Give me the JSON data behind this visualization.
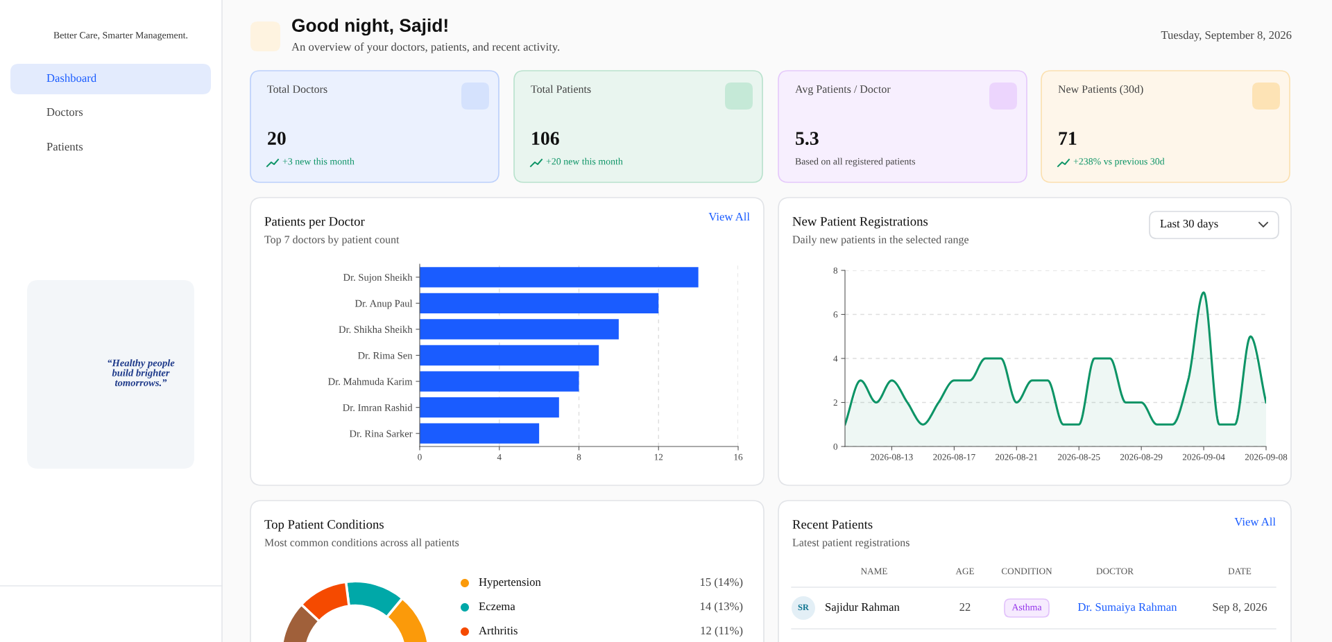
{
  "chart_data": [
    {
      "type": "other",
      "subtitle": "Better Care, Smarter Management.",
      "annotations": [
        "Dashboard",
        "Doctors",
        "Patients",
        "“Healthy people\nbuild brighter\ntomorrows.”"
      ]
    },
    {
      "type": "other",
      "title": "Good night, Sajid!",
      "subtitle": "An overview of your doctors, patients, and recent activity.",
      "annotations": [
        "Tuesday, September 8, 2026"
      ]
    },
    {
      "type": "other",
      "title": "Total Doctors",
      "annotations": [
        "20",
        "+3 new this month"
      ]
    },
    {
      "type": "other",
      "title": "Total Patients",
      "annotations": [
        "106",
        "+20 new this month"
      ]
    },
    {
      "type": "other",
      "title": "Avg Patients / Doctor",
      "annotations": [
        "5.3",
        "Based on all registered patients"
      ]
    },
    {
      "type": "other",
      "title": "New Patients (30d)",
      "annotations": [
        "71",
        "+238% vs previous 30d"
      ]
    },
    {
      "type": "bar",
      "orientation": "horizontal",
      "title": "Patients per Doctor",
      "subtitle": "Top 7 doctors by patient count",
      "annotations": [
        "View All"
      ],
      "categories": [
        "Dr. Sujon Sheikh",
        "Dr. Anup Paul",
        "Dr. Shikha Sheikh",
        "Dr. Rima Sen",
        "Dr. Mahmuda Karim",
        "Dr. Imran Rashid",
        "Dr. Rina Sarker"
      ],
      "values": [
        14,
        12,
        10,
        9,
        8,
        7,
        6
      ],
      "color": "#1a5cff",
      "xlim": [
        0,
        16
      ],
      "xticks": [
        0,
        4,
        8,
        12,
        16
      ],
      "grid": "x"
    },
    {
      "type": "area",
      "title": "New Patient Registrations",
      "subtitle": "Daily new patients in the selected range",
      "annotations": [
        "Last 30 days"
      ],
      "categories": [
        null,
        null,
        null,
        "2026-08-13",
        null,
        null,
        null,
        "2026-08-17",
        null,
        null,
        null,
        "2026-08-21",
        null,
        null,
        null,
        "2026-08-25",
        null,
        null,
        null,
        "2026-08-29",
        null,
        null,
        null,
        "2026-09-04",
        null,
        null,
        null,
        "2026-09-08"
      ],
      "values": [
        1,
        3,
        2,
        3,
        2,
        1,
        2,
        3,
        3,
        4,
        4,
        2,
        3,
        3,
        1,
        1,
        4,
        4,
        2,
        2,
        1,
        1,
        3,
        7,
        1,
        1,
        5,
        2
      ],
      "color": "#0d9466",
      "ylim": [
        0,
        8
      ],
      "yticks": [
        0,
        2,
        4,
        6,
        8
      ],
      "grid": "y"
    },
    {
      "type": "donut",
      "title": "Top Patient Conditions",
      "subtitle": "Most common conditions across all patients",
      "categories": [
        "Hypertension",
        "Eczema",
        "Arthritis",
        null
      ],
      "values": [
        14,
        13,
        11,
        10
      ],
      "value_labels": [
        "15 (14%)",
        "14 (13%)",
        "12 (11%)",
        null
      ],
      "colors": [
        "#fb9a0a",
        "#00a8a8",
        "#f54a00",
        "#a0603a"
      ],
      "legend": "right"
    },
    {
      "type": "other",
      "title": "Recent Patients",
      "subtitle": "Latest patient registrations",
      "annotations": [
        "View All",
        "NAME",
        "AGE",
        "CONDITION",
        "DOCTOR",
        "DATE",
        "SR",
        "Sajidur Rahman",
        "22",
        "Asthma",
        "Dr. Sumaiya Rahman",
        "Sep 8, 2026"
      ]
    }
  ]
}
